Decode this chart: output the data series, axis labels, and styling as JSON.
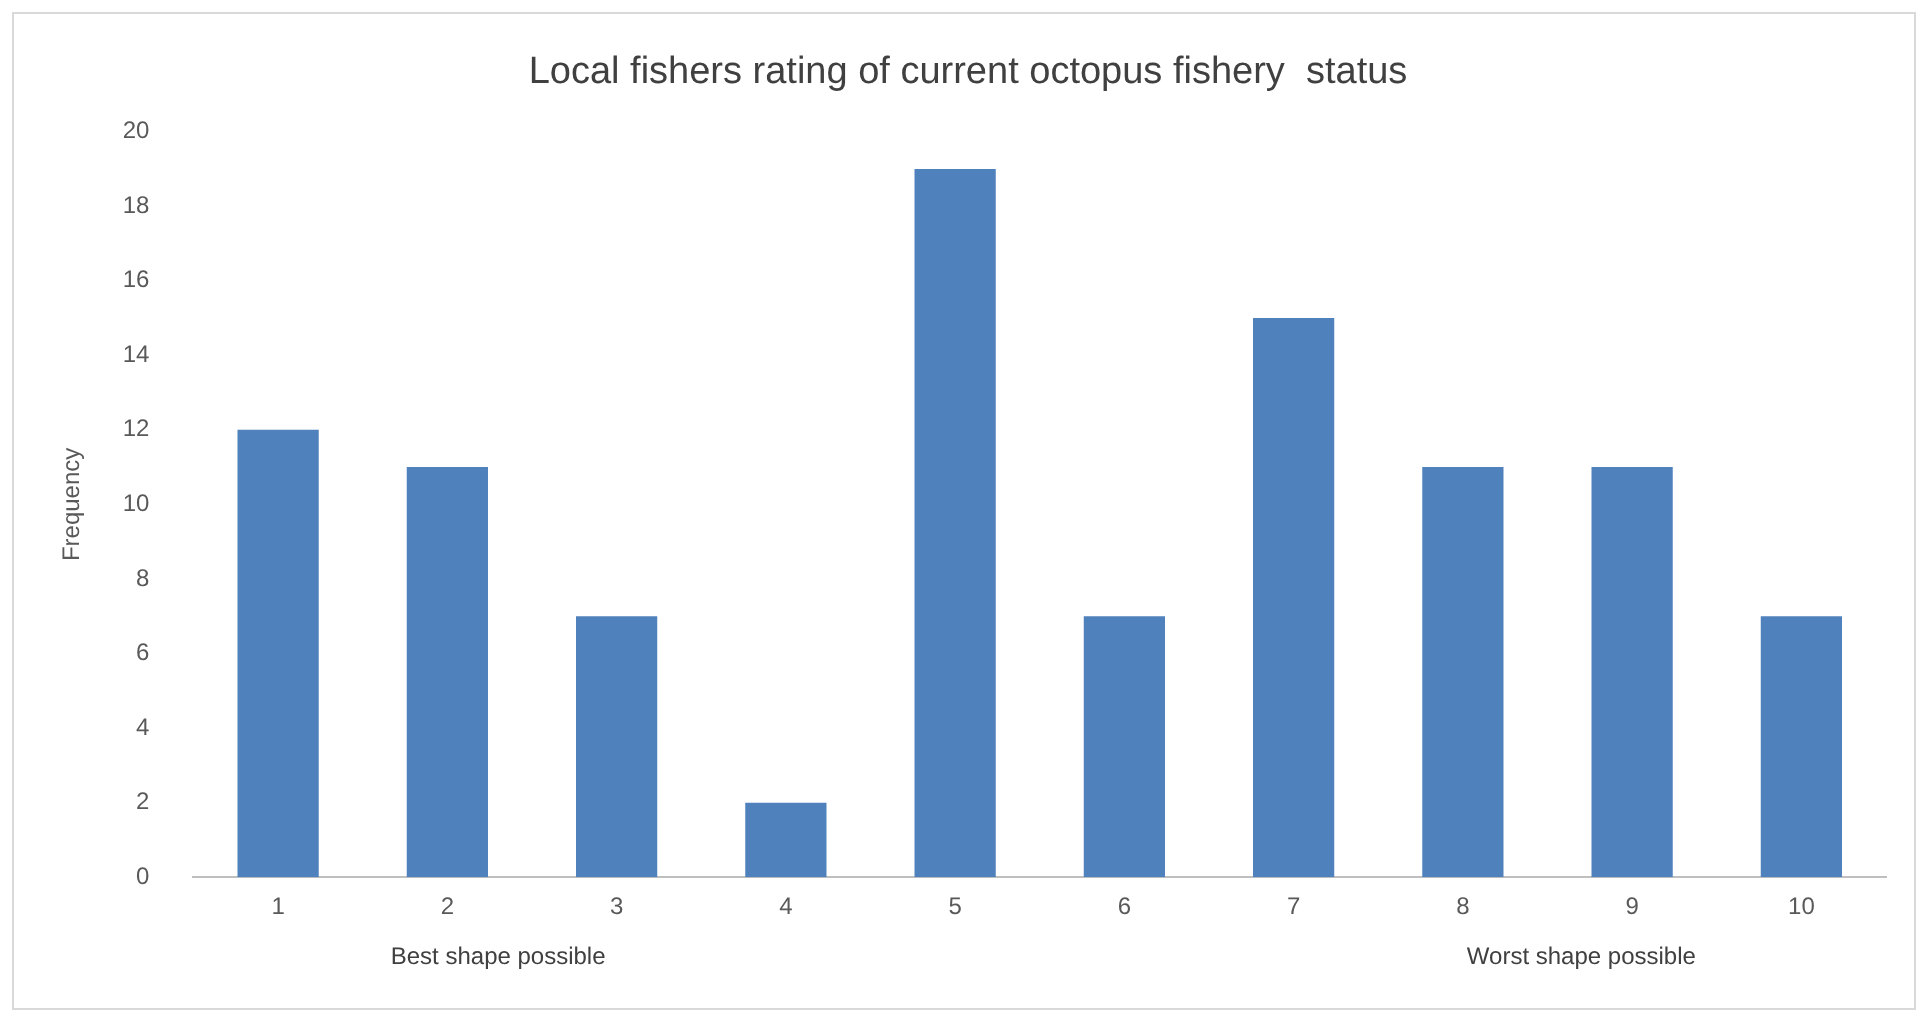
{
  "chart_data": {
    "type": "bar",
    "title": "Local fishers rating of current octopus fishery  status",
    "ylabel": "Frequency",
    "categories": [
      "1",
      "2",
      "3",
      "4",
      "5",
      "6",
      "7",
      "8",
      "9",
      "10"
    ],
    "values": [
      12,
      11,
      7,
      2,
      19,
      7,
      15,
      11,
      11,
      7
    ],
    "color": "#4f81bd",
    "ylim": [
      0,
      20
    ],
    "yticks": [
      0,
      2,
      4,
      6,
      8,
      10,
      12,
      14,
      16,
      18,
      20
    ],
    "grid": false,
    "legend": false,
    "annotations": [
      "Best shape possible",
      "Worst shape possible"
    ]
  }
}
